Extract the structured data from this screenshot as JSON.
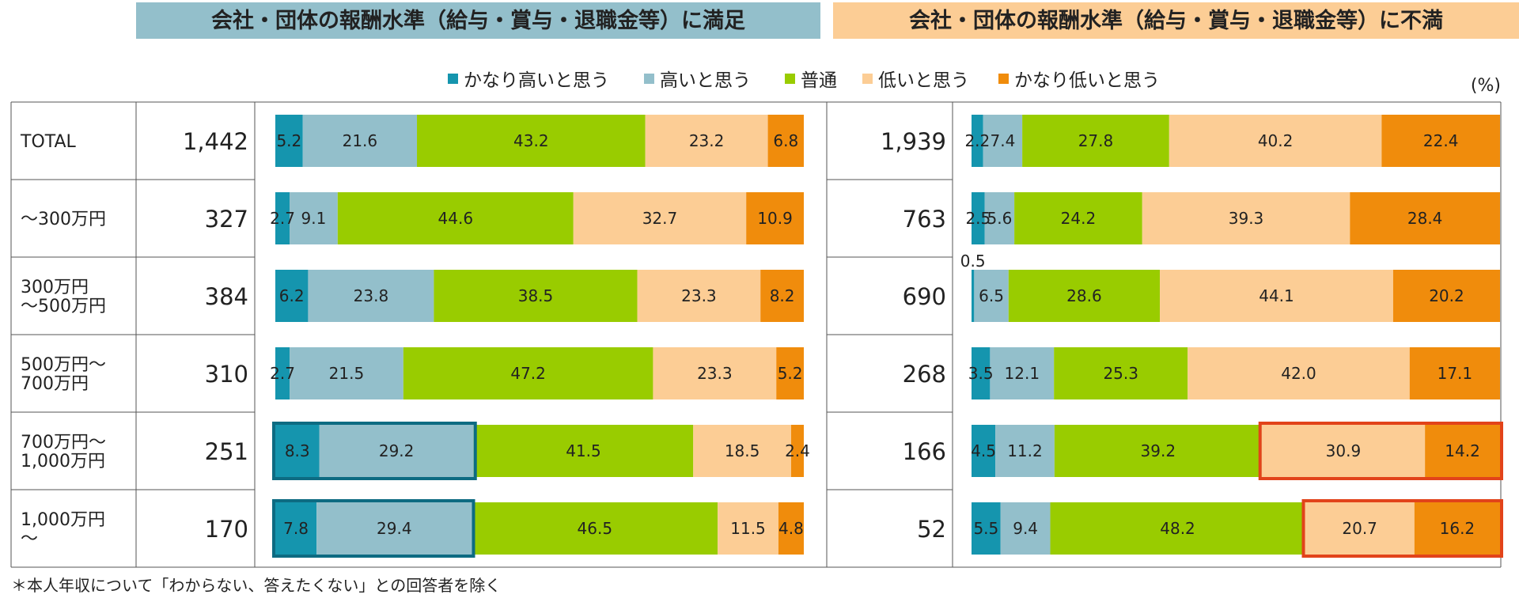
{
  "chart_data": {
    "type": "bar",
    "stacked": true,
    "orientation": "horizontal",
    "unit_label": "(%)",
    "legend": [
      {
        "label": "かなり高いと思う",
        "color": "#1595ae"
      },
      {
        "label": "高いと思う",
        "color": "#93bfcb"
      },
      {
        "label": "普通",
        "color": "#99cc00"
      },
      {
        "label": "低いと思う",
        "color": "#fccd95"
      },
      {
        "label": "かなり低いと思う",
        "color": "#f08c0c"
      }
    ],
    "categories": [
      [
        "TOTAL"
      ],
      [
        "～300万円"
      ],
      [
        "300万円",
        "～500万円"
      ],
      [
        "500万円～",
        "700万円"
      ],
      [
        "700万円～",
        "1,000万円"
      ],
      [
        "1,000万円",
        "～"
      ]
    ],
    "panels": [
      {
        "title": "会社・団体の報酬水準（給与・賞与・退職金等）に満足",
        "header_color": "#93bfcb",
        "highlight_color": "#0d6b82",
        "counts": [
          "1,442",
          "327",
          "384",
          "310",
          "251",
          "170"
        ],
        "rows": [
          [
            5.2,
            21.6,
            43.2,
            23.2,
            6.8
          ],
          [
            2.7,
            9.1,
            44.6,
            32.7,
            10.9
          ],
          [
            6.2,
            23.8,
            38.5,
            23.3,
            8.2
          ],
          [
            2.7,
            21.5,
            47.2,
            23.3,
            5.2
          ],
          [
            8.3,
            29.2,
            41.5,
            18.5,
            2.4
          ],
          [
            7.8,
            29.4,
            46.5,
            11.5,
            4.8
          ]
        ],
        "highlights": [
          {
            "row": 4,
            "from": 0,
            "to": 1
          },
          {
            "row": 5,
            "from": 0,
            "to": 1
          }
        ]
      },
      {
        "title": "会社・団体の報酬水準（給与・賞与・退職金等）に不満",
        "header_color": "#fccd95",
        "highlight_color": "#e2431a",
        "counts": [
          "1,939",
          "763",
          "690",
          "268",
          "166",
          "52"
        ],
        "rows": [
          [
            2.2,
            7.4,
            27.8,
            40.2,
            22.4
          ],
          [
            2.5,
            5.6,
            24.2,
            39.3,
            28.4
          ],
          [
            0.5,
            6.5,
            28.6,
            44.1,
            20.2
          ],
          [
            3.5,
            12.1,
            25.3,
            42.0,
            17.1
          ],
          [
            4.5,
            11.2,
            39.2,
            30.9,
            14.2
          ],
          [
            5.5,
            9.4,
            48.2,
            20.7,
            16.2
          ]
        ],
        "highlights": [
          {
            "row": 4,
            "from": 3,
            "to": 4
          },
          {
            "row": 5,
            "from": 3,
            "to": 4
          }
        ]
      }
    ]
  },
  "footnote": "＊本人年収について「わからない、答えたくない」との回答者を除く"
}
